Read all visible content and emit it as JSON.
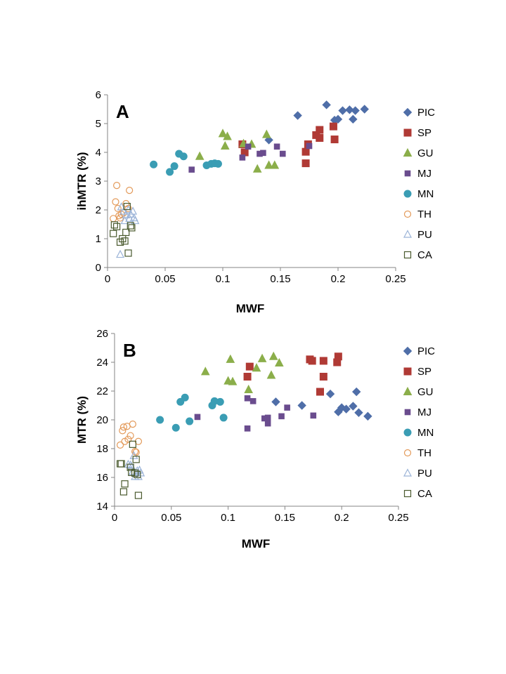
{
  "series_styles": [
    {
      "name": "PIC",
      "shape": "diamond",
      "fill": "#4F6EA8",
      "stroke": "#4F6EA8"
    },
    {
      "name": "SP",
      "shape": "square",
      "fill": "#B03A35",
      "stroke": "#B03A35"
    },
    {
      "name": "GU",
      "shape": "triangle",
      "fill": "#8BAE4A",
      "stroke": "#8BAE4A"
    },
    {
      "name": "MJ",
      "shape": "smallsquare",
      "fill": "#6A4C8E",
      "stroke": "#6A4C8E"
    },
    {
      "name": "MN",
      "shape": "circle",
      "fill": "#3A9DB4",
      "stroke": "#3A9DB4"
    },
    {
      "name": "TH",
      "shape": "circle-open",
      "fill": "none",
      "stroke": "#E39A5A"
    },
    {
      "name": "PU",
      "shape": "triangle-open",
      "fill": "none",
      "stroke": "#9CB4D8"
    },
    {
      "name": "CA",
      "shape": "square-open",
      "fill": "none",
      "stroke": "#4A5A2E"
    }
  ],
  "chart_data": [
    {
      "type": "scatter",
      "panel_label": "A",
      "xlabel": "MWF",
      "ylabel": "ihMTR (%)",
      "xlim": [
        0,
        0.25
      ],
      "ylim": [
        0,
        6
      ],
      "xticks": [
        "0",
        "0.05",
        "0.1",
        "0.15",
        "0.2",
        "0.25"
      ],
      "yticks": [
        "0",
        "1",
        "2",
        "3",
        "4",
        "5",
        "6"
      ],
      "legend_position": "right",
      "series": [
        {
          "name": "PIC",
          "points": [
            [
              0.165,
              5.28
            ],
            [
              0.19,
              5.65
            ],
            [
              0.197,
              5.12
            ],
            [
              0.2,
              5.15
            ],
            [
              0.204,
              5.45
            ],
            [
              0.21,
              5.48
            ],
            [
              0.215,
              5.45
            ],
            [
              0.213,
              5.15
            ],
            [
              0.223,
              5.5
            ],
            [
              0.14,
              4.43
            ]
          ]
        },
        {
          "name": "SP",
          "points": [
            [
              0.117,
              4.28
            ],
            [
              0.119,
              4.0
            ],
            [
              0.172,
              3.62
            ],
            [
              0.172,
              4.02
            ],
            [
              0.174,
              4.28
            ],
            [
              0.181,
              4.6
            ],
            [
              0.184,
              4.5
            ],
            [
              0.184,
              4.78
            ],
            [
              0.196,
              4.9
            ],
            [
              0.197,
              4.45
            ]
          ]
        },
        {
          "name": "GU",
          "points": [
            [
              0.08,
              3.86
            ],
            [
              0.1,
              4.65
            ],
            [
              0.102,
              4.22
            ],
            [
              0.104,
              4.55
            ],
            [
              0.118,
              4.3
            ],
            [
              0.125,
              4.28
            ],
            [
              0.13,
              3.42
            ],
            [
              0.138,
              4.62
            ],
            [
              0.14,
              3.55
            ],
            [
              0.145,
              3.55
            ]
          ]
        },
        {
          "name": "MJ",
          "points": [
            [
              0.073,
              3.4
            ],
            [
              0.117,
              3.82
            ],
            [
              0.122,
              4.2
            ],
            [
              0.132,
              3.95
            ],
            [
              0.135,
              3.98
            ],
            [
              0.147,
              4.2
            ],
            [
              0.152,
              3.95
            ],
            [
              0.175,
              4.22
            ]
          ]
        },
        {
          "name": "MN",
          "points": [
            [
              0.04,
              3.58
            ],
            [
              0.054,
              3.32
            ],
            [
              0.058,
              3.52
            ],
            [
              0.062,
              3.95
            ],
            [
              0.066,
              3.86
            ],
            [
              0.086,
              3.55
            ],
            [
              0.09,
              3.6
            ],
            [
              0.093,
              3.62
            ],
            [
              0.096,
              3.6
            ]
          ]
        },
        {
          "name": "TH",
          "points": [
            [
              0.005,
              1.7
            ],
            [
              0.007,
              2.28
            ],
            [
              0.008,
              2.85
            ],
            [
              0.009,
              2.05
            ],
            [
              0.01,
              1.8
            ],
            [
              0.011,
              1.72
            ],
            [
              0.012,
              1.85
            ],
            [
              0.014,
              1.9
            ],
            [
              0.016,
              2.22
            ],
            [
              0.018,
              2.05
            ],
            [
              0.019,
              2.68
            ]
          ]
        },
        {
          "name": "PU",
          "points": [
            [
              0.011,
              0.45
            ],
            [
              0.012,
              2.1
            ],
            [
              0.014,
              1.95
            ],
            [
              0.015,
              1.62
            ],
            [
              0.016,
              1.82
            ],
            [
              0.018,
              2.0
            ],
            [
              0.019,
              1.7
            ],
            [
              0.02,
              1.85
            ],
            [
              0.022,
              1.95
            ],
            [
              0.023,
              1.72
            ],
            [
              0.024,
              1.62
            ]
          ]
        },
        {
          "name": "CA",
          "points": [
            [
              0.005,
              1.18
            ],
            [
              0.006,
              1.48
            ],
            [
              0.008,
              1.42
            ],
            [
              0.011,
              0.88
            ],
            [
              0.013,
              1.0
            ],
            [
              0.015,
              0.92
            ],
            [
              0.016,
              1.22
            ],
            [
              0.017,
              2.12
            ],
            [
              0.018,
              0.5
            ],
            [
              0.02,
              1.45
            ],
            [
              0.021,
              1.38
            ]
          ]
        }
      ]
    },
    {
      "type": "scatter",
      "panel_label": "B",
      "xlabel": "MWF",
      "ylabel": "MTR (%)",
      "xlim": [
        0,
        0.25
      ],
      "ylim": [
        14,
        26
      ],
      "xticks": [
        "0",
        "0.05",
        "0.1",
        "0.15",
        "0.2",
        "0.25"
      ],
      "yticks": [
        "14",
        "16",
        "18",
        "20",
        "22",
        "24",
        "26"
      ],
      "legend_position": "right",
      "series": [
        {
          "name": "PIC",
          "points": [
            [
              0.142,
              21.25
            ],
            [
              0.165,
              21.0
            ],
            [
              0.19,
              21.8
            ],
            [
              0.197,
              20.55
            ],
            [
              0.2,
              20.85
            ],
            [
              0.204,
              20.75
            ],
            [
              0.21,
              20.95
            ],
            [
              0.213,
              21.95
            ],
            [
              0.215,
              20.5
            ],
            [
              0.223,
              20.25
            ]
          ]
        },
        {
          "name": "SP",
          "points": [
            [
              0.117,
              23.0
            ],
            [
              0.119,
              23.7
            ],
            [
              0.172,
              24.2
            ],
            [
              0.174,
              24.1
            ],
            [
              0.181,
              21.95
            ],
            [
              0.184,
              24.1
            ],
            [
              0.184,
              23.0
            ],
            [
              0.196,
              24.0
            ],
            [
              0.197,
              24.4
            ]
          ]
        },
        {
          "name": "GU",
          "points": [
            [
              0.08,
              23.35
            ],
            [
              0.1,
              22.7
            ],
            [
              0.102,
              24.2
            ],
            [
              0.104,
              22.65
            ],
            [
              0.118,
              22.1
            ],
            [
              0.125,
              23.6
            ],
            [
              0.13,
              24.25
            ],
            [
              0.138,
              23.1
            ],
            [
              0.14,
              24.4
            ],
            [
              0.145,
              23.95
            ]
          ]
        },
        {
          "name": "MJ",
          "points": [
            [
              0.073,
              20.2
            ],
            [
              0.117,
              19.4
            ],
            [
              0.117,
              21.5
            ],
            [
              0.122,
              21.3
            ],
            [
              0.132,
              20.1
            ],
            [
              0.135,
              20.15
            ],
            [
              0.135,
              19.75
            ],
            [
              0.147,
              20.25
            ],
            [
              0.152,
              20.85
            ],
            [
              0.175,
              20.3
            ]
          ]
        },
        {
          "name": "MN",
          "points": [
            [
              0.04,
              20.0
            ],
            [
              0.054,
              19.45
            ],
            [
              0.058,
              21.25
            ],
            [
              0.062,
              21.55
            ],
            [
              0.066,
              19.9
            ],
            [
              0.086,
              21.0
            ],
            [
              0.088,
              21.3
            ],
            [
              0.093,
              21.25
            ],
            [
              0.096,
              20.15
            ]
          ]
        },
        {
          "name": "TH",
          "points": [
            [
              0.005,
              18.25
            ],
            [
              0.007,
              19.25
            ],
            [
              0.008,
              19.5
            ],
            [
              0.009,
              18.5
            ],
            [
              0.011,
              19.55
            ],
            [
              0.012,
              18.65
            ],
            [
              0.014,
              18.9
            ],
            [
              0.016,
              19.7
            ],
            [
              0.018,
              17.8
            ],
            [
              0.019,
              17.75
            ],
            [
              0.021,
              18.5
            ]
          ]
        },
        {
          "name": "PU",
          "points": [
            [
              0.012,
              16.9
            ],
            [
              0.014,
              16.85
            ],
            [
              0.015,
              16.75
            ],
            [
              0.016,
              16.4
            ],
            [
              0.017,
              17.5
            ],
            [
              0.018,
              16.05
            ],
            [
              0.019,
              16.3
            ],
            [
              0.02,
              16.45
            ],
            [
              0.021,
              16.05
            ],
            [
              0.022,
              16.5
            ],
            [
              0.023,
              16.3
            ]
          ]
        },
        {
          "name": "CA",
          "points": [
            [
              0.005,
              16.95
            ],
            [
              0.006,
              16.95
            ],
            [
              0.008,
              15.0
            ],
            [
              0.009,
              15.55
            ],
            [
              0.014,
              16.7
            ],
            [
              0.015,
              16.35
            ],
            [
              0.016,
              18.3
            ],
            [
              0.018,
              16.3
            ],
            [
              0.019,
              17.25
            ],
            [
              0.02,
              16.2
            ],
            [
              0.021,
              14.75
            ]
          ]
        }
      ]
    }
  ]
}
